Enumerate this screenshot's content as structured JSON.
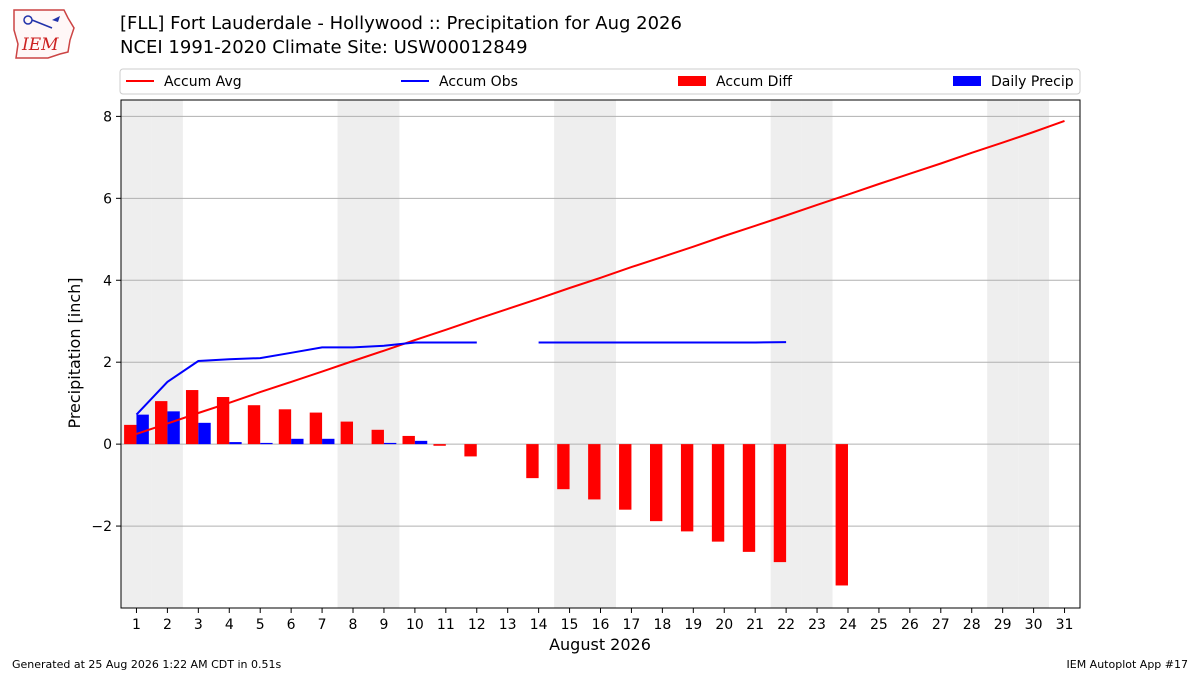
{
  "header": {
    "title": "[FLL] Fort Lauderdale - Hollywood :: Precipitation for Aug 2026",
    "subtitle": "NCEI 1991-2020 Climate Site: USW00012849",
    "logo_text": "IEM"
  },
  "footer": {
    "generated": "Generated at 25 Aug 2026 1:22 AM CDT in 0.51s",
    "app": "IEM Autoplot App #17"
  },
  "colors": {
    "accum_avg": "#ff0000",
    "accum_obs": "#0000ff",
    "accum_diff": "#ff0000",
    "daily_precip": "#0000ff",
    "weekend_shade": "#eeeeee",
    "grid": "#b0b0b0"
  },
  "chart_data": {
    "type": "bar",
    "xlabel": "August 2026",
    "ylabel": "Precipitation [inch]",
    "xlim": [
      0.5,
      31.5
    ],
    "ylim": [
      -4.0,
      8.4
    ],
    "yticks": [
      -2,
      0,
      2,
      4,
      6,
      8
    ],
    "ytick_labels": [
      "−2",
      "0",
      "2",
      "4",
      "6",
      "8"
    ],
    "days": [
      1,
      2,
      3,
      4,
      5,
      6,
      7,
      8,
      9,
      10,
      11,
      12,
      13,
      14,
      15,
      16,
      17,
      18,
      19,
      20,
      21,
      22,
      23,
      24,
      25,
      26,
      27,
      28,
      29,
      30,
      31
    ],
    "weekend_days": [
      1,
      2,
      8,
      9,
      15,
      16,
      22,
      23,
      29,
      30
    ],
    "grid": "horizontal",
    "legend": {
      "placement": "top",
      "entries": [
        {
          "label": "Accum Avg",
          "kind": "line",
          "series": "accum_avg"
        },
        {
          "label": "Accum Obs",
          "kind": "line",
          "series": "accum_obs"
        },
        {
          "label": "Accum Diff",
          "kind": "bar",
          "series": "accum_diff"
        },
        {
          "label": "Daily Precip",
          "kind": "bar",
          "series": "daily_precip"
        }
      ]
    },
    "series": [
      {
        "name": "Accum Avg",
        "key": "accum_avg",
        "type": "line",
        "values": [
          0.25,
          0.5,
          0.76,
          1.01,
          1.27,
          1.52,
          1.77,
          2.03,
          2.28,
          2.54,
          2.79,
          3.05,
          3.3,
          3.55,
          3.81,
          4.06,
          4.32,
          4.57,
          4.82,
          5.08,
          5.33,
          5.58,
          5.84,
          6.09,
          6.35,
          6.6,
          6.85,
          7.11,
          7.36,
          7.62,
          7.89
        ]
      },
      {
        "name": "Accum Obs",
        "key": "accum_obs",
        "type": "line",
        "values": [
          0.72,
          1.52,
          2.03,
          2.07,
          2.1,
          2.23,
          2.36,
          2.36,
          2.4,
          2.48,
          2.48,
          2.48,
          null,
          2.48,
          2.48,
          2.48,
          2.48,
          2.48,
          2.48,
          2.48,
          2.48,
          2.49,
          null,
          null,
          null,
          null,
          null,
          null,
          null,
          null,
          null
        ]
      },
      {
        "name": "Accum Diff",
        "key": "accum_diff",
        "type": "bar",
        "values": [
          0.47,
          1.05,
          1.32,
          1.15,
          0.95,
          0.85,
          0.77,
          0.55,
          0.35,
          0.2,
          -0.04,
          -0.3,
          null,
          -0.83,
          -1.1,
          -1.35,
          -1.6,
          -1.88,
          -2.13,
          -2.38,
          -2.63,
          -2.88,
          null,
          -3.45,
          null,
          null,
          null,
          null,
          null,
          null,
          null
        ]
      },
      {
        "name": "Daily Precip",
        "key": "daily_precip",
        "type": "bar",
        "values": [
          0.72,
          0.8,
          0.52,
          0.05,
          0.03,
          0.13,
          0.13,
          0.0,
          0.03,
          0.08,
          0.0,
          0.0,
          null,
          0.0,
          0.0,
          0.0,
          0.0,
          0.0,
          0.0,
          0.0,
          0.0,
          0.0,
          null,
          null,
          null,
          null,
          null,
          null,
          null,
          null,
          null
        ]
      }
    ]
  }
}
